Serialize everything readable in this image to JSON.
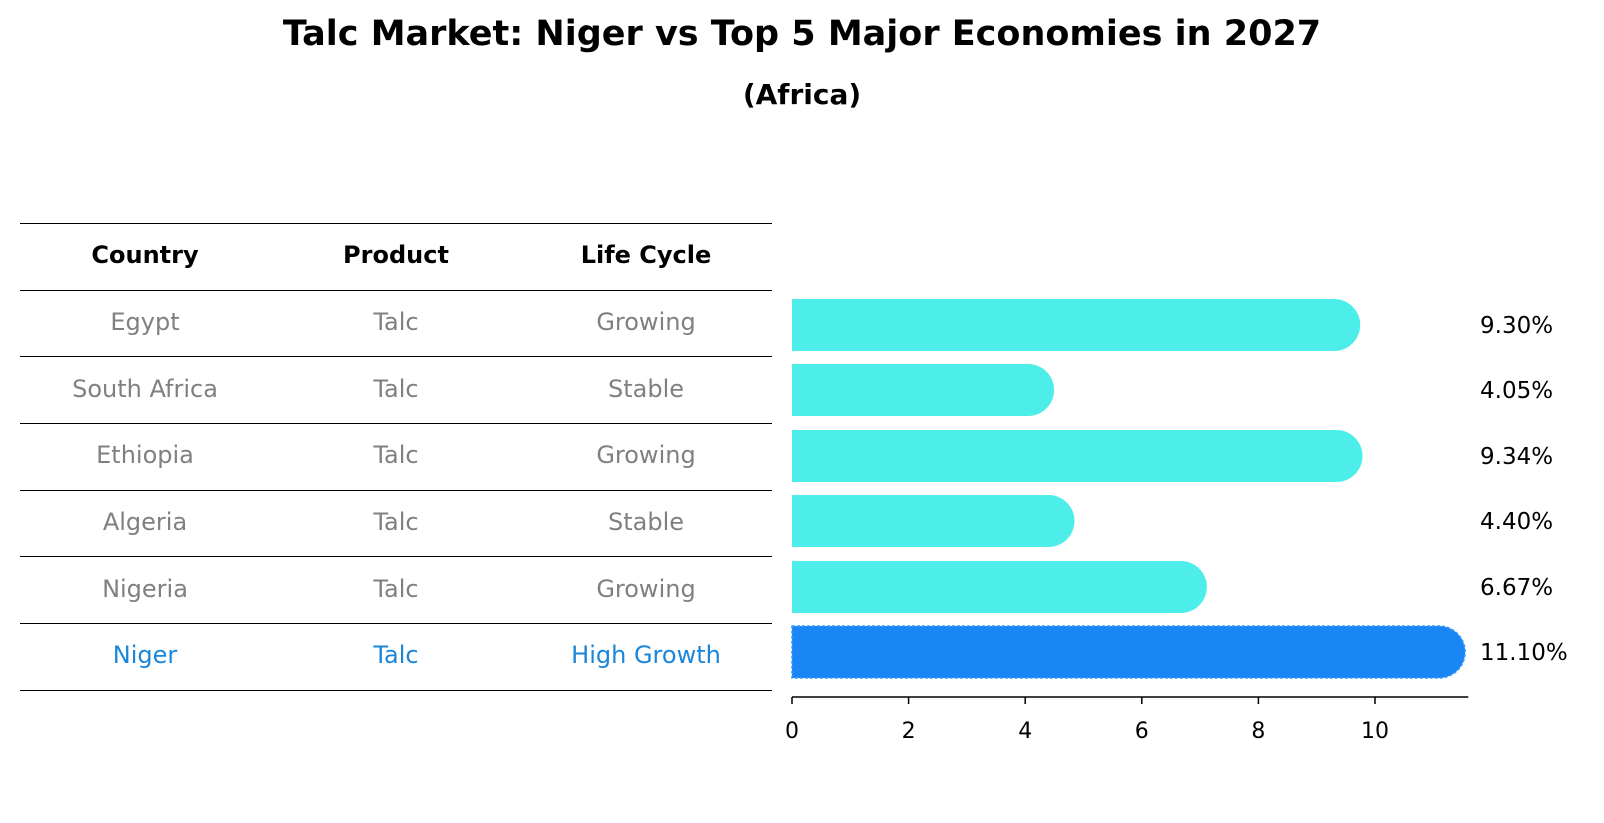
{
  "title": "Talc Market: Niger vs Top 5 Major Economies in 2027",
  "subtitle": "(Africa)",
  "table": {
    "headers": [
      "Country",
      "Product",
      "Life Cycle"
    ],
    "rows": [
      {
        "country": "Egypt",
        "product": "Talc",
        "life_cycle": "Growing"
      },
      {
        "country": "South Africa",
        "product": "Talc",
        "life_cycle": "Stable"
      },
      {
        "country": "Ethiopia",
        "product": "Talc",
        "life_cycle": "Growing"
      },
      {
        "country": "Algeria",
        "product": "Talc",
        "life_cycle": "Stable"
      },
      {
        "country": "Nigeria",
        "product": "Talc",
        "life_cycle": "Growing"
      },
      {
        "country": "Niger",
        "product": "Talc",
        "life_cycle": "High Growth"
      }
    ]
  },
  "colors": {
    "bar": "#4deeea",
    "highlight": "#1a86f5",
    "highlight_text": "#1a86d9",
    "muted_text": "#808080"
  },
  "chart_data": {
    "type": "bar",
    "orientation": "horizontal",
    "categories": [
      "Egypt",
      "South Africa",
      "Ethiopia",
      "Algeria",
      "Nigeria",
      "Niger"
    ],
    "values": [
      9.3,
      4.05,
      9.34,
      4.4,
      6.67,
      11.1
    ],
    "value_labels": [
      "9.30%",
      "4.05%",
      "9.34%",
      "4.40%",
      "6.67%",
      "11.10%"
    ],
    "highlight_category": "Niger",
    "xlim": [
      0,
      11.6
    ],
    "xticks": [
      0,
      2,
      4,
      6,
      8,
      10
    ],
    "xtick_labels": [
      "0",
      "2",
      "4",
      "6",
      "8",
      "10"
    ],
    "grid": false
  }
}
